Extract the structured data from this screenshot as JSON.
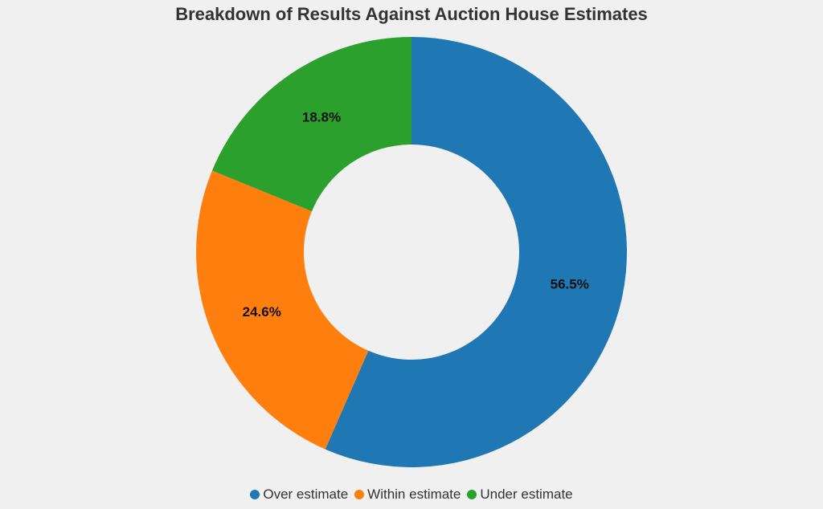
{
  "chart_data": {
    "type": "pie",
    "variant": "donut",
    "title": "Breakdown of Results Against Auction House Estimates",
    "series": [
      {
        "name": "Over estimate",
        "value": 56.5,
        "label": "56.5%",
        "color": "#1f77b4"
      },
      {
        "name": "Within estimate",
        "value": 24.6,
        "label": "24.6%",
        "color": "#ff7f0e"
      },
      {
        "name": "Under estimate",
        "value": 18.8,
        "label": "18.8%",
        "color": "#2ca02c"
      }
    ],
    "legend_position": "bottom-center"
  }
}
